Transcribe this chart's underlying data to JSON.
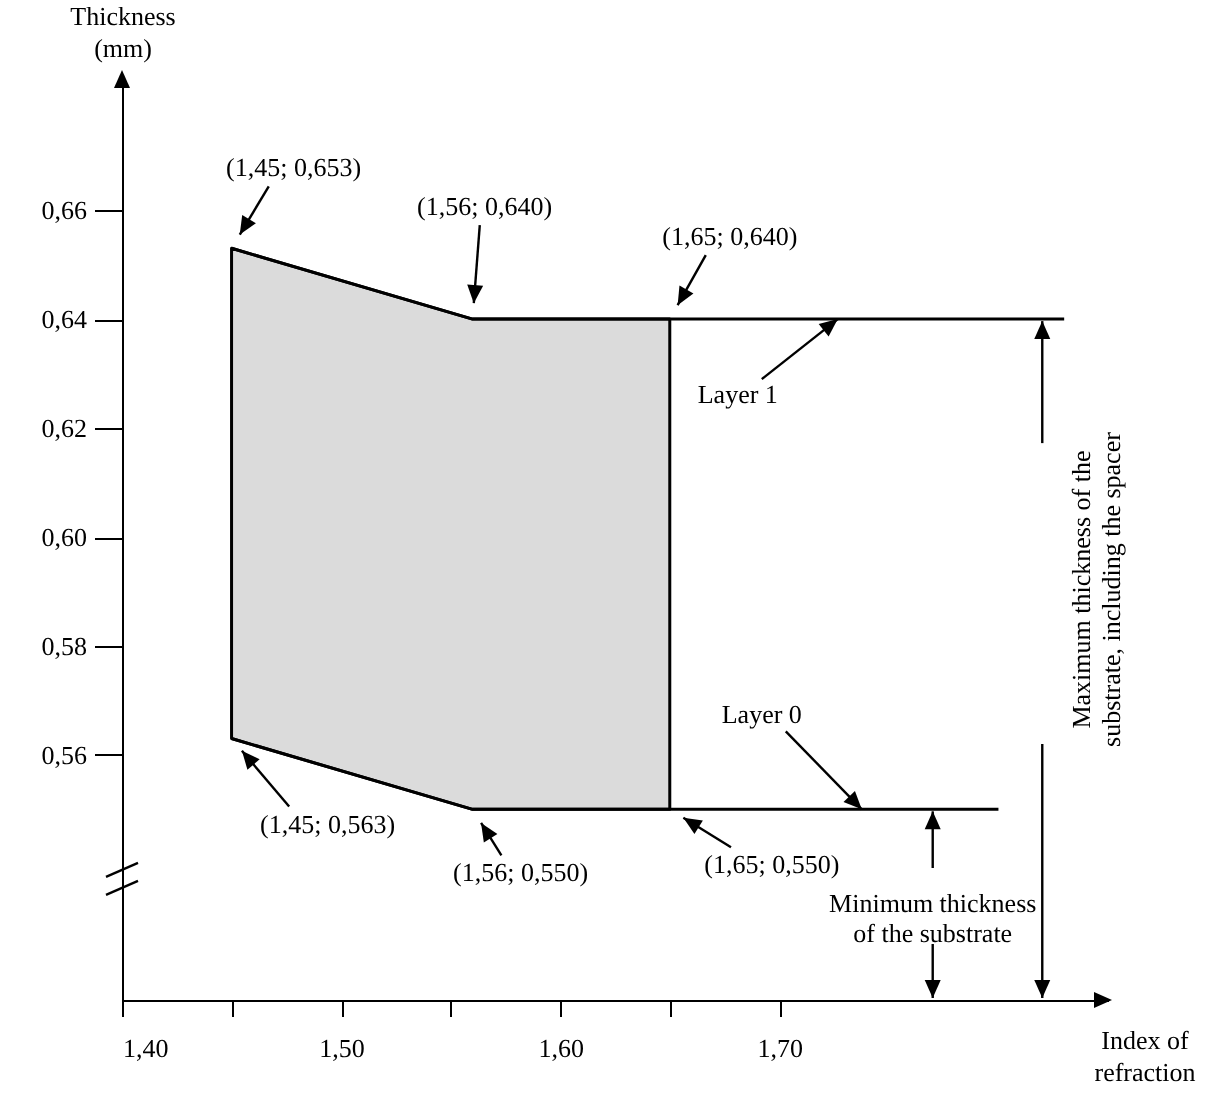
{
  "chart_data": {
    "type": "line",
    "xlabel": "Index of\nrefraction",
    "ylabel": "Thickness\n(mm)",
    "xlim": [
      1.4,
      1.85
    ],
    "ylim": [
      0.515,
      0.685
    ],
    "xticks": [
      {
        "value": 1.4,
        "label": "1,40"
      },
      {
        "value": 1.45,
        "label": null
      },
      {
        "value": 1.5,
        "label": "1,50"
      },
      {
        "value": 1.55,
        "label": null
      },
      {
        "value": 1.6,
        "label": "1,60"
      },
      {
        "value": 1.65,
        "label": null
      },
      {
        "value": 1.7,
        "label": "1,70"
      }
    ],
    "yticks": [
      {
        "value": 0.56,
        "label": "0,56"
      },
      {
        "value": 0.58,
        "label": "0,58"
      },
      {
        "value": 0.6,
        "label": "0,60"
      },
      {
        "value": 0.62,
        "label": "0,62"
      },
      {
        "value": 0.64,
        "label": "0,64"
      },
      {
        "value": 0.66,
        "label": "0,66"
      }
    ],
    "grid": false,
    "marker": "none",
    "line_style": "solid",
    "series": [
      {
        "name": "Layer 1",
        "color": "#000000",
        "x": [
          1.45,
          1.56,
          1.65,
          1.83
        ],
        "values": [
          0.653,
          0.64,
          0.64,
          0.64
        ],
        "lower": [
          0.563,
          0.55,
          0.55,
          null
        ],
        "upper": [
          0.653,
          0.64,
          0.64,
          null
        ]
      },
      {
        "name": "Layer 0",
        "color": "#000000",
        "x": [
          1.45,
          1.56,
          1.65,
          1.8
        ],
        "values": [
          0.563,
          0.55,
          0.55,
          0.55
        ]
      }
    ],
    "annotations": [
      {
        "text": "(1,45; 0,653)",
        "x": 1.45,
        "y": 0.653
      },
      {
        "text": "(1,56; 0,640)",
        "x": 1.56,
        "y": 0.64
      },
      {
        "text": "(1,65; 0,640)",
        "x": 1.65,
        "y": 0.64
      },
      {
        "text": "(1,45; 0,563)",
        "x": 1.45,
        "y": 0.563
      },
      {
        "text": "(1,56; 0,550)",
        "x": 1.56,
        "y": 0.55
      },
      {
        "text": "(1,65; 0,550)",
        "x": 1.65,
        "y": 0.55
      },
      {
        "text": "Minimum thickness\nof the substrate",
        "x": 1.77,
        "y": 0.55
      },
      {
        "text": "Maximum thickness of the\nsubstrate, including the spacer",
        "x": 1.82,
        "y": 0.64
      }
    ]
  }
}
